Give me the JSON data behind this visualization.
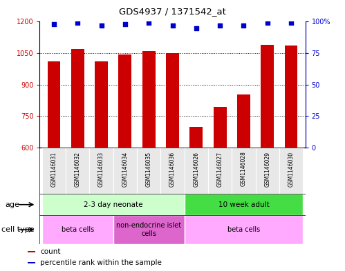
{
  "title": "GDS4937 / 1371542_at",
  "samples": [
    "GSM1146031",
    "GSM1146032",
    "GSM1146033",
    "GSM1146034",
    "GSM1146035",
    "GSM1146036",
    "GSM1146026",
    "GSM1146027",
    "GSM1146028",
    "GSM1146029",
    "GSM1146030"
  ],
  "bar_values": [
    1010,
    1070,
    1010,
    1045,
    1060,
    1050,
    700,
    795,
    855,
    1090,
    1085
  ],
  "dot_values": [
    98,
    99,
    97,
    98,
    99,
    97,
    95,
    97,
    97,
    99,
    99
  ],
  "bar_color": "#cc0000",
  "dot_color": "#0000cc",
  "ylim_left": [
    600,
    1200
  ],
  "ylim_right": [
    0,
    100
  ],
  "yticks_left": [
    600,
    750,
    900,
    1050,
    1200
  ],
  "yticks_right": [
    0,
    25,
    50,
    75,
    100
  ],
  "grid_values": [
    750,
    900,
    1050
  ],
  "age_groups": [
    {
      "label": "2-3 day neonate",
      "start": 0,
      "end": 6,
      "color": "#ccffcc"
    },
    {
      "label": "10 week adult",
      "start": 6,
      "end": 11,
      "color": "#44dd44"
    }
  ],
  "cell_type_groups": [
    {
      "label": "beta cells",
      "start": 0,
      "end": 3,
      "color": "#ffaaff"
    },
    {
      "label": "non-endocrine islet\ncells",
      "start": 3,
      "end": 6,
      "color": "#dd66cc"
    },
    {
      "label": "beta cells",
      "start": 6,
      "end": 11,
      "color": "#ffaaff"
    }
  ],
  "legend_items": [
    {
      "color": "#cc0000",
      "label": "count"
    },
    {
      "color": "#0000cc",
      "label": "percentile rank within the sample"
    }
  ],
  "background_color": "#ffffff",
  "bar_width": 0.55
}
